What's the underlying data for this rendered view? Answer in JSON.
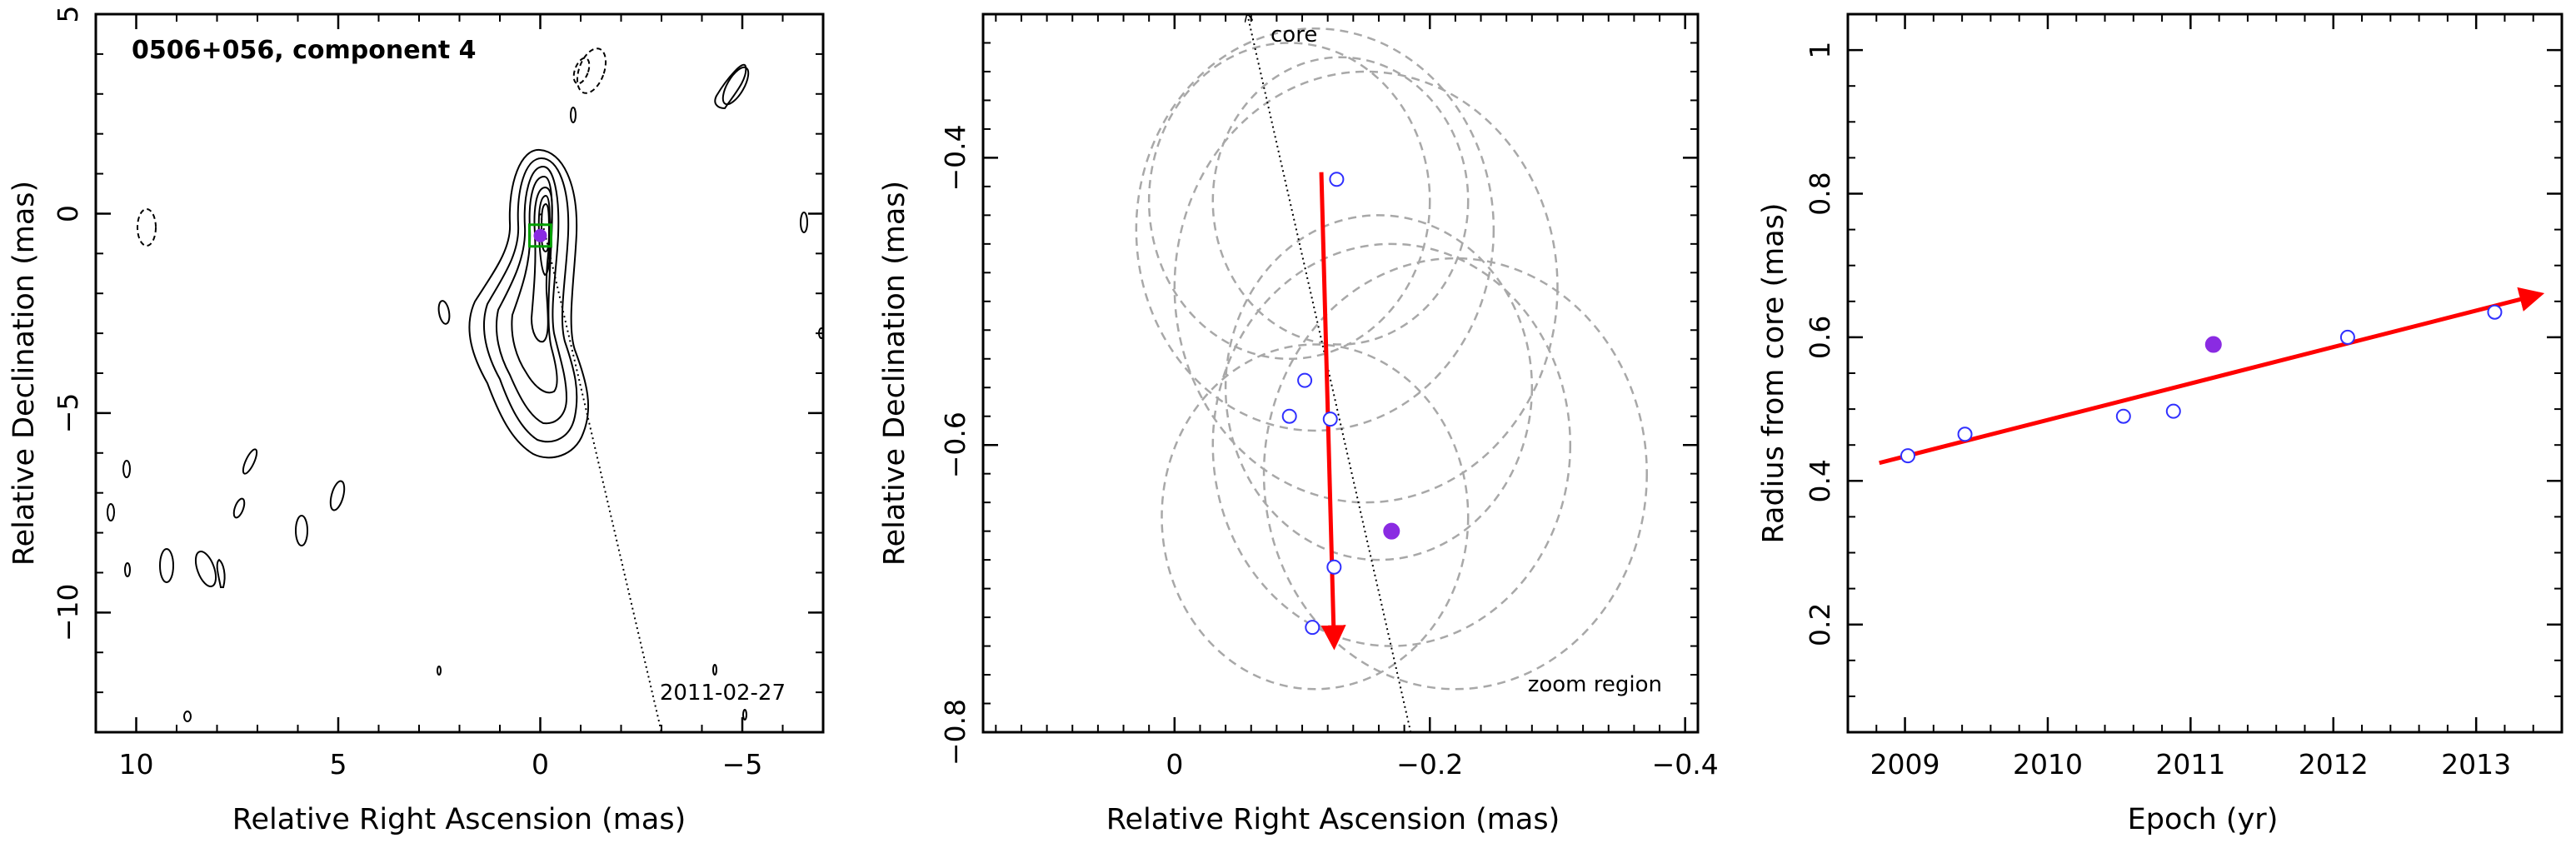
{
  "chart_data": [
    {
      "type": "scatter",
      "panel": "map",
      "title": "0506+056, component 4",
      "xlabel": "Relative Right Ascension (mas)",
      "ylabel": "Relative Declination (mas)",
      "xlim": [
        11,
        -7
      ],
      "ylim": [
        -13,
        5
      ],
      "xticks": [
        10,
        5,
        0,
        -5
      ],
      "yticks": [
        5,
        0,
        -5,
        -10
      ],
      "annotation": "2011-02-27",
      "component_position": {
        "x": 0.0,
        "y": -0.55
      },
      "jet_direction_line": {
        "from": {
          "x": 0.0,
          "y": 0.0
        },
        "to": {
          "x": -3.0,
          "y": -13.0
        }
      },
      "contours": "total intensity contour map; jet extends to the south-southwest, dashed contours negative"
    },
    {
      "type": "scatter",
      "panel": "zoom",
      "annotation": "zoom region",
      "core_label": "core",
      "xlabel": "Relative Right Ascension (mas)",
      "ylabel": "Relative Declination (mas)",
      "xlim": [
        0.15,
        -0.41
      ],
      "ylim": [
        -0.8,
        -0.3
      ],
      "xticks": [
        0,
        -0.2,
        -0.4
      ],
      "yticks": [
        -0.4,
        -0.6,
        -0.8
      ],
      "series": [
        {
          "marker": "open-circle",
          "color": "#3030ff",
          "points": [
            [
              -0.127,
              -0.415
            ],
            [
              -0.102,
              -0.555
            ],
            [
              -0.09,
              -0.58
            ],
            [
              -0.122,
              -0.582
            ],
            [
              -0.125,
              -0.685
            ],
            [
              -0.108,
              -0.727
            ]
          ]
        },
        {
          "marker": "filled-circle",
          "color": "#8a2be2",
          "points": [
            [
              -0.17,
              -0.66
            ]
          ]
        }
      ],
      "motion_vector": {
        "color": "#ff0000",
        "from": [
          -0.115,
          -0.41
        ],
        "to": [
          -0.125,
          -0.74
        ]
      },
      "core_direction_line": {
        "from": [
          -0.185,
          -0.8
        ],
        "to": [
          -0.057,
          -0.3
        ]
      },
      "beam_circles": [
        {
          "cx": -0.09,
          "cy": -0.43,
          "r": 0.11
        },
        {
          "cx": -0.11,
          "cy": -0.45,
          "r": 0.14
        },
        {
          "cx": -0.13,
          "cy": -0.43,
          "r": 0.1
        },
        {
          "cx": -0.15,
          "cy": -0.49,
          "r": 0.15
        },
        {
          "cx": -0.16,
          "cy": -0.56,
          "r": 0.12
        },
        {
          "cx": -0.11,
          "cy": -0.65,
          "r": 0.12
        },
        {
          "cx": -0.17,
          "cy": -0.6,
          "r": 0.14
        },
        {
          "cx": -0.22,
          "cy": -0.62,
          "r": 0.15
        }
      ]
    },
    {
      "type": "scatter",
      "panel": "radius-vs-epoch",
      "xlabel": "Epoch (yr)",
      "ylabel": "Radius from core (mas)",
      "xlim": [
        2008.6,
        2013.6
      ],
      "ylim": [
        0.05,
        1.05
      ],
      "xticks": [
        2009,
        2010,
        2011,
        2012,
        2013
      ],
      "yticks": [
        0.2,
        0.4,
        0.6,
        0.8,
        1
      ],
      "series": [
        {
          "marker": "open-circle",
          "color": "#3030ff",
          "points": [
            [
              2009.02,
              0.435
            ],
            [
              2009.42,
              0.465
            ],
            [
              2010.53,
              0.49
            ],
            [
              2010.88,
              0.497
            ],
            [
              2012.1,
              0.6
            ],
            [
              2013.13,
              0.635
            ]
          ]
        },
        {
          "marker": "filled-circle",
          "color": "#8a2be2",
          "points": [
            [
              2011.16,
              0.59
            ]
          ]
        }
      ],
      "fit_arrow": {
        "color": "#ff0000",
        "from": [
          2008.82,
          0.425
        ],
        "to": [
          2013.45,
          0.66
        ]
      }
    }
  ]
}
